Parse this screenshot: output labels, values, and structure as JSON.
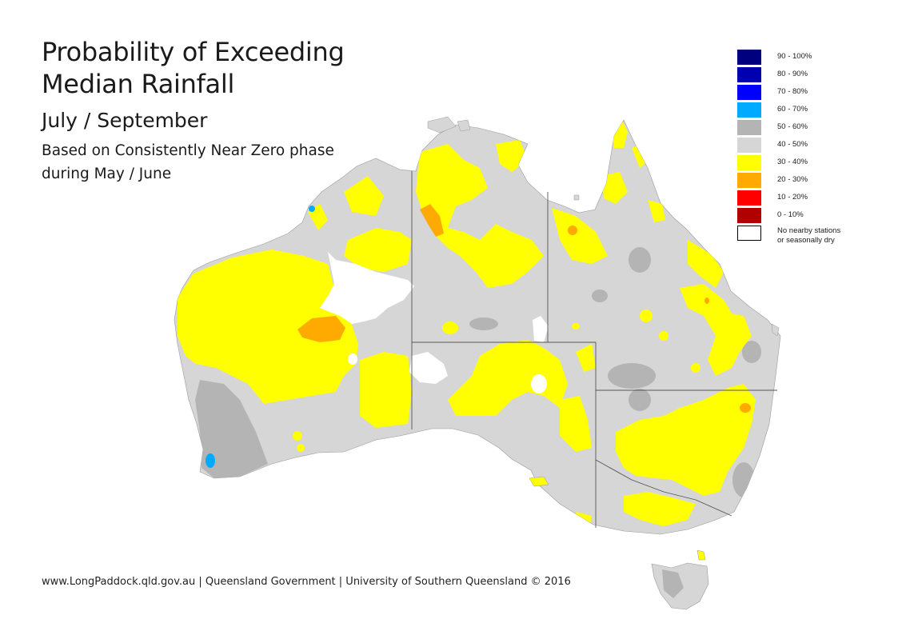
{
  "title": {
    "line1": "Probability of Exceeding",
    "line2": "Median Rainfall",
    "period": "July / September",
    "note_line1": "Based on Consistently Near Zero phase",
    "note_line2": "during May / June"
  },
  "legend": [
    {
      "label": "90 - 100%",
      "color": "#00007f"
    },
    {
      "label": "80 - 90%",
      "color": "#0000b0"
    },
    {
      "label": "70 - 80%",
      "color": "#0000ff"
    },
    {
      "label": "60 - 70%",
      "color": "#00aaff"
    },
    {
      "label": "50 - 60%",
      "color": "#b4b4b4"
    },
    {
      "label": "40 - 50%",
      "color": "#d6d6d6"
    },
    {
      "label": "30 - 40%",
      "color": "#ffff00"
    },
    {
      "label": "20 - 30%",
      "color": "#ffaa00"
    },
    {
      "label": "10 - 20%",
      "color": "#ff0000"
    },
    {
      "label": "0 - 10%",
      "color": "#b00000"
    },
    {
      "label": "No nearby stations",
      "label2": "or seasonally dry",
      "color": "#ffffff"
    }
  ],
  "footer": "www.LongPaddock.qld.gov.au | Queensland Government | University of Southern Queensland © 2016",
  "colors": {
    "land_base": "#d6d6d6",
    "prob_50_60": "#b4b4b4",
    "prob_30_40": "#ffff00",
    "prob_20_30": "#ffaa00",
    "prob_60_70": "#00aaff",
    "no_data": "#ffffff",
    "border": "#555555"
  }
}
